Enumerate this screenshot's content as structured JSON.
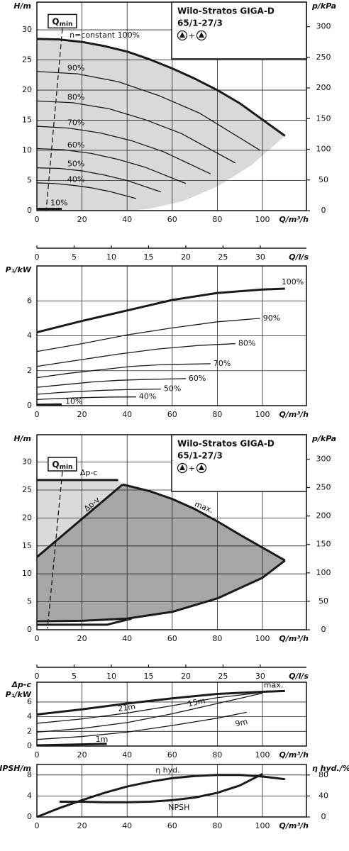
{
  "chart_data": [
    {
      "type": "line",
      "ylabel": "H/m",
      "y2label": "p/kPa",
      "xlabel": "Q/m³/h",
      "xlim": [
        0,
        119.5
      ],
      "xticks": [
        0,
        20,
        40,
        60,
        80,
        100
      ],
      "ylim": [
        0,
        34.6
      ],
      "yticks": [
        0,
        5,
        10,
        15,
        20,
        25,
        30
      ],
      "y2lim": [
        0,
        340
      ],
      "y2ticks": [
        0,
        50,
        100,
        150,
        200,
        250,
        300
      ],
      "x2label": "Q/l/s",
      "x2lim": [
        0,
        36.2
      ],
      "x2ticks": [
        0,
        5,
        10,
        15,
        20,
        25,
        30
      ],
      "grid": true,
      "color": "#1a1a1a",
      "info": {
        "title": "Wilo-Stratos GIGA-D",
        "model": "65/1-27/3",
        "joiner": "+"
      },
      "areas": [
        {
          "color": "#d9d9d9",
          "x": [
            0,
            10,
            20,
            30,
            40,
            50,
            60,
            70,
            80,
            90,
            100,
            110,
            95,
            80,
            65,
            50,
            40,
            0
          ],
          "values": [
            28.5,
            28.4,
            28.0,
            27.3,
            26.4,
            25.1,
            23.6,
            21.9,
            20.0,
            17.8,
            15.1,
            12.4,
            7.5,
            4,
            1.6,
            0.3,
            0,
            0
          ]
        }
      ],
      "series": [
        {
          "name": "Q",
          "name_sub": "min",
          "dash": true,
          "x": [
            11.3,
            4.1
          ],
          "values": [
            30.2,
            0
          ]
        },
        {
          "name": "n=constant 100%",
          "bold": true,
          "x": [
            0,
            10,
            20,
            30,
            40,
            50,
            60,
            70,
            80,
            90,
            100,
            110
          ],
          "values": [
            28.5,
            28.4,
            28.0,
            27.3,
            26.4,
            25.1,
            23.6,
            21.9,
            20.0,
            17.8,
            15.1,
            12.4
          ]
        },
        {
          "name": "90%",
          "x": [
            0,
            18,
            36,
            54,
            72,
            99
          ],
          "values": [
            23.1,
            22.7,
            21.4,
            19.1,
            16.2,
            10.0
          ]
        },
        {
          "name": "80%",
          "x": [
            0,
            16,
            32,
            48,
            64,
            88
          ],
          "values": [
            18.2,
            17.9,
            16.9,
            15.1,
            12.8,
            7.9
          ]
        },
        {
          "name": "70%",
          "x": [
            0,
            14,
            28,
            42,
            56,
            77
          ],
          "values": [
            14.0,
            13.7,
            12.9,
            11.6,
            9.8,
            6.1
          ]
        },
        {
          "name": "60%",
          "x": [
            0,
            12,
            24,
            36,
            48,
            66
          ],
          "values": [
            10.3,
            10.1,
            9.5,
            8.5,
            7.2,
            4.5
          ]
        },
        {
          "name": "50%",
          "x": [
            0,
            10,
            20,
            30,
            40,
            55
          ],
          "values": [
            7.1,
            7.0,
            6.6,
            5.9,
            5.0,
            3.1
          ]
        },
        {
          "name": "40%",
          "x": [
            0,
            8,
            16,
            24,
            32,
            44
          ],
          "values": [
            4.6,
            4.5,
            4.2,
            3.8,
            3.2,
            2.0
          ]
        },
        {
          "name": "10%",
          "bold": true,
          "x": [
            0,
            11
          ],
          "values": [
            0.3,
            0.3
          ]
        }
      ]
    },
    {
      "type": "line",
      "ylabel": "P₁/kW",
      "xlabel": "Q/m³/h",
      "xlim": [
        0,
        119.5
      ],
      "xticks": [
        0,
        20,
        40,
        60,
        80,
        100
      ],
      "ylim": [
        0,
        8
      ],
      "yticks": [
        0,
        2,
        4,
        6
      ],
      "grid": true,
      "color": "#1a1a1a",
      "series": [
        {
          "name": "100%",
          "bold": true,
          "x": [
            0,
            20,
            40,
            60,
            80,
            100,
            110
          ],
          "values": [
            4.2,
            4.85,
            5.45,
            6.05,
            6.45,
            6.65,
            6.7
          ]
        },
        {
          "name": "90%",
          "x": [
            0,
            20,
            40,
            60,
            80,
            99
          ],
          "values": [
            3.1,
            3.55,
            4.05,
            4.45,
            4.8,
            5.0
          ]
        },
        {
          "name": "80%",
          "x": [
            0,
            18,
            36,
            54,
            72,
            88
          ],
          "values": [
            2.25,
            2.6,
            2.95,
            3.25,
            3.45,
            3.55
          ]
        },
        {
          "name": "70%",
          "x": [
            0,
            14,
            28,
            42,
            56,
            77
          ],
          "values": [
            1.6,
            1.85,
            2.05,
            2.25,
            2.35,
            2.4
          ]
        },
        {
          "name": "60%",
          "x": [
            0,
            12,
            24,
            36,
            48,
            66
          ],
          "values": [
            1.05,
            1.2,
            1.35,
            1.45,
            1.5,
            1.55
          ]
        },
        {
          "name": "50%",
          "x": [
            0,
            10,
            20,
            30,
            40,
            55
          ],
          "values": [
            0.65,
            0.75,
            0.82,
            0.88,
            0.92,
            0.95
          ]
        },
        {
          "name": "40%",
          "x": [
            0,
            8,
            16,
            24,
            32,
            44
          ],
          "values": [
            0.35,
            0.4,
            0.44,
            0.47,
            0.49,
            0.5
          ]
        },
        {
          "name": "10%",
          "bold": true,
          "x": [
            0,
            11
          ],
          "values": [
            0.05,
            0.07
          ]
        }
      ]
    },
    {
      "type": "line",
      "ylabel": "H/m",
      "y2label": "p/kPa",
      "xlabel": "Q/m³/h",
      "xlim": [
        0,
        119.5
      ],
      "xticks": [
        0,
        20,
        40,
        60,
        80,
        100
      ],
      "ylim": [
        0,
        34.9
      ],
      "yticks": [
        0,
        5,
        10,
        15,
        20,
        25,
        30
      ],
      "y2lim": [
        0,
        343
      ],
      "y2ticks": [
        0,
        50,
        100,
        150,
        200,
        250,
        300
      ],
      "x2label": "Q/l/s",
      "x2lim": [
        0,
        36.2
      ],
      "x2ticks": [
        0,
        5,
        10,
        15,
        20,
        25,
        30
      ],
      "grid": true,
      "color": "#1a1a1a",
      "info": {
        "title": "Wilo-Stratos GIGA-D",
        "model": "65/1-27/3",
        "joiner": "+"
      },
      "areas": [
        {
          "color": "#dadada",
          "x": [
            0,
            0,
            36,
            38
          ],
          "values": [
            13,
            26.8,
            26.8,
            26
          ]
        },
        {
          "color": "#a6a6a6",
          "x": [
            0,
            0,
            38,
            50,
            60,
            70,
            80,
            90,
            100,
            110,
            100,
            80,
            60,
            40,
            20,
            0
          ],
          "values": [
            1.5,
            13,
            26,
            24.8,
            23.4,
            21.6,
            19.4,
            17,
            14.7,
            12.4,
            9.3,
            5.6,
            3.2,
            2,
            1.6,
            1.5
          ]
        }
      ],
      "series": [
        {
          "name": "Q",
          "name_sub": "min",
          "dash": true,
          "x": [
            11.3,
            4.7
          ],
          "values": [
            28.3,
            0.2
          ]
        },
        {
          "name": "Δp-c",
          "bold": true,
          "x": [
            0,
            36
          ],
          "values": [
            26.8,
            26.8
          ]
        },
        {
          "name": "Δp-v",
          "bold": true,
          "x": [
            0,
            38
          ],
          "values": [
            13,
            26
          ]
        },
        {
          "name": "max.",
          "bold": true,
          "x": [
            38,
            50,
            60,
            70,
            80,
            90,
            100,
            110
          ],
          "values": [
            26,
            24.8,
            23.4,
            21.6,
            19.4,
            17,
            14.7,
            12.4
          ]
        },
        {
          "bold": true,
          "x": [
            0,
            20,
            40,
            60,
            80,
            100,
            110
          ],
          "values": [
            1.5,
            1.6,
            2,
            3.2,
            5.6,
            9.3,
            12.4
          ]
        },
        {
          "bold": true,
          "x": [
            0,
            31,
            42
          ],
          "values": [
            0.9,
            0.9,
            2.0
          ]
        }
      ]
    },
    {
      "type": "line",
      "ylabel": [
        "Δp-c",
        "P₁/kW"
      ],
      "xlabel": "Q/m³/h",
      "xlim": [
        0,
        119.5
      ],
      "xticks": [
        0,
        20,
        40,
        60,
        80,
        100
      ],
      "ylim": [
        0,
        8.7
      ],
      "yticks": [
        0,
        2,
        4,
        6
      ],
      "grid": true,
      "color": "#1a1a1a",
      "series": [
        {
          "name": "max.",
          "bold": true,
          "x": [
            0,
            20,
            40,
            60,
            80,
            100,
            110
          ],
          "values": [
            4.3,
            5.0,
            5.8,
            6.5,
            7.1,
            7.4,
            7.5
          ]
        },
        {
          "name": "21m",
          "x": [
            0,
            20,
            40,
            60,
            80,
            100
          ],
          "values": [
            3.1,
            3.7,
            4.5,
            5.5,
            6.6,
            7.3
          ]
        },
        {
          "name": "15m",
          "x": [
            0,
            20,
            40,
            60,
            80,
            100
          ],
          "values": [
            1.9,
            2.4,
            3.2,
            4.4,
            5.8,
            7.2
          ]
        },
        {
          "name": "9m",
          "x": [
            0,
            20,
            40,
            60,
            80,
            93
          ],
          "values": [
            0.9,
            1.3,
            1.9,
            2.8,
            3.8,
            4.6
          ]
        },
        {
          "name": "1m",
          "bold": true,
          "x": [
            0,
            31
          ],
          "values": [
            0.1,
            0.3
          ]
        }
      ]
    },
    {
      "type": "line",
      "ylabel": "NPSH/m",
      "y2label": "η hyd./%",
      "xlabel": "Q/m³/h",
      "xlim": [
        0,
        119.5
      ],
      "xticks": [
        0,
        20,
        40,
        60,
        80,
        100
      ],
      "ylim": [
        0,
        10
      ],
      "yticks": [
        0,
        4,
        8
      ],
      "y2lim": [
        0,
        100
      ],
      "y2ticks": [
        0,
        40,
        80
      ],
      "grid": true,
      "color": "#1a1a1a",
      "series": [
        {
          "name": "η hyd.",
          "bold": true,
          "axis": "y2",
          "x": [
            0,
            10,
            20,
            30,
            40,
            50,
            60,
            70,
            80,
            90,
            100,
            110
          ],
          "values": [
            0,
            17,
            32,
            46,
            58,
            67,
            74,
            78,
            80,
            80,
            77,
            72
          ]
        },
        {
          "name": "NPSH",
          "bold": true,
          "x": [
            10,
            20,
            30,
            40,
            50,
            60,
            70,
            80,
            90,
            100
          ],
          "values": [
            2.9,
            2.9,
            2.8,
            2.8,
            2.9,
            3.2,
            3.7,
            4.6,
            6.0,
            8.2
          ]
        }
      ]
    }
  ]
}
